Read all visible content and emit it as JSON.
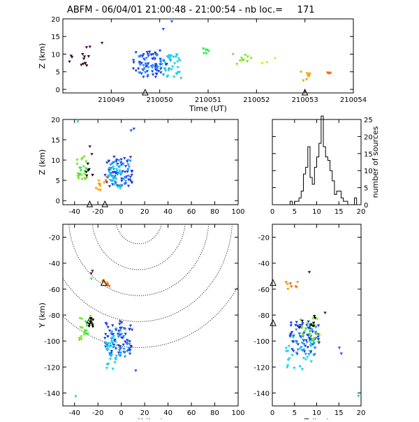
{
  "title": "ABFM - 06/04/01 21:00:48 - 21:00:54 - nb loc.=     171",
  "chart_data": [
    {
      "id": "time-height",
      "type": "scatter",
      "xlabel": "Time (UT)",
      "ylabel": "Z (km)",
      "xlim": [
        210048,
        210054
      ],
      "ylim": [
        -1,
        20
      ],
      "xticks": [
        210049,
        210050,
        210051,
        210052,
        210053,
        210054
      ],
      "yticks": [
        0,
        5,
        10,
        15,
        20
      ],
      "markers_x": [
        210049.7,
        210053.0
      ],
      "groups": [
        {
          "color": "#3a0a2a",
          "n": 12,
          "x": [
            210048.08,
            210048.6
          ],
          "y": [
            6,
            10
          ]
        },
        {
          "color": "#550a55",
          "n": 3,
          "x": [
            210048.35,
            210048.85
          ],
          "y": [
            11,
            13.5
          ]
        },
        {
          "color": "#1a3ae0",
          "n": 55,
          "x": [
            210049.45,
            210050.15
          ],
          "y": [
            3.5,
            11
          ]
        },
        {
          "color": "#1e90ff",
          "n": 35,
          "x": [
            210049.5,
            210050.25
          ],
          "y": [
            4,
            10
          ]
        },
        {
          "color": "#14d2e6",
          "n": 30,
          "x": [
            210050.1,
            210050.45
          ],
          "y": [
            3,
            10
          ]
        },
        {
          "color": "#2050ff",
          "n": 2,
          "x": [
            210050.0,
            210050.4
          ],
          "y": [
            17,
            19.5
          ]
        },
        {
          "color": "#28e650",
          "n": 6,
          "x": [
            210050.85,
            210051.05
          ],
          "y": [
            10,
            12
          ]
        },
        {
          "color": "#78e61e",
          "n": 10,
          "x": [
            210051.5,
            210051.9
          ],
          "y": [
            6.5,
            10
          ]
        },
        {
          "color": "#c8f01e",
          "n": 3,
          "x": [
            210052.1,
            210052.5
          ],
          "y": [
            7,
            9.5
          ]
        },
        {
          "color": "#f0a000",
          "n": 8,
          "x": [
            210052.9,
            210053.1
          ],
          "y": [
            2.5,
            5
          ]
        },
        {
          "color": "#ff5a00",
          "n": 3,
          "x": [
            210053.3,
            210053.55
          ],
          "y": [
            4,
            5.5
          ]
        }
      ]
    },
    {
      "id": "x-z",
      "type": "scatter",
      "xlabel": "",
      "ylabel": "Z (km)",
      "xlim": [
        -50,
        100
      ],
      "ylim": [
        -1,
        20
      ],
      "xticks": [
        -40,
        -20,
        0,
        20,
        40,
        60,
        80,
        100
      ],
      "yticks": [
        0,
        5,
        10,
        15,
        20
      ],
      "markers_x": [
        -27,
        -14
      ],
      "groups": [
        {
          "color": "#78e61e",
          "n": 20,
          "x": [
            -38,
            -28
          ],
          "y": [
            5,
            11
          ]
        },
        {
          "color": "#28e650",
          "n": 6,
          "x": [
            -36,
            -29
          ],
          "y": [
            6,
            9
          ]
        },
        {
          "color": "#000000",
          "n": 6,
          "x": [
            -30,
            -24
          ],
          "y": [
            6,
            10
          ]
        },
        {
          "color": "#550a55",
          "n": 2,
          "x": [
            -30,
            -24
          ],
          "y": [
            11,
            13.5
          ]
        },
        {
          "color": "#f0a000",
          "n": 8,
          "x": [
            -22,
            -14
          ],
          "y": [
            2.5,
            5
          ]
        },
        {
          "color": "#ff5a00",
          "n": 3,
          "x": [
            -15,
            -10
          ],
          "y": [
            4,
            6
          ]
        },
        {
          "color": "#1a3ae0",
          "n": 55,
          "x": [
            -14,
            10
          ],
          "y": [
            3.5,
            11
          ]
        },
        {
          "color": "#1e90ff",
          "n": 30,
          "x": [
            -12,
            8
          ],
          "y": [
            4,
            10
          ]
        },
        {
          "color": "#14d2e6",
          "n": 25,
          "x": [
            -12,
            0
          ],
          "y": [
            3,
            9
          ]
        },
        {
          "color": "#2050ff",
          "n": 2,
          "x": [
            8,
            12
          ],
          "y": [
            16,
            18
          ]
        },
        {
          "color": "#14d2e6",
          "n": 1,
          "x": [
            -39,
            -37
          ],
          "y": [
            19,
            19.6
          ]
        }
      ]
    },
    {
      "id": "histogram",
      "type": "bar",
      "xlabel": "",
      "ylabel": "number of sources",
      "xlim": [
        0,
        20
      ],
      "ylim": [
        0,
        25
      ],
      "xticks": [
        0,
        5,
        10,
        15,
        20
      ],
      "yticks": [
        0,
        5,
        10,
        15,
        20,
        25
      ],
      "bin_width": 0.5,
      "bin_start": 0,
      "values": [
        0,
        0,
        0,
        0,
        0,
        0,
        0,
        0,
        1,
        0,
        1,
        1,
        2,
        4,
        9,
        11,
        17,
        8,
        6,
        11,
        14,
        18,
        26,
        17,
        14,
        13,
        10,
        7,
        3,
        4,
        4,
        2,
        1,
        1,
        0,
        0,
        0,
        2,
        0,
        0
      ]
    },
    {
      "id": "x-y",
      "type": "scatter",
      "xlabel": "X (km)",
      "ylabel": "Y (km)",
      "xlim": [
        -50,
        100
      ],
      "ylim": [
        -150,
        -10
      ],
      "xticks": [
        -40,
        -20,
        0,
        20,
        40,
        60,
        80,
        100
      ],
      "yticks": [
        -140,
        -120,
        -100,
        -80,
        -60,
        -40,
        -20
      ],
      "markers": [
        [
          -15,
          -55
        ],
        [
          -27,
          -84
        ]
      ],
      "range_rings": {
        "center": [
          15,
          -5
        ],
        "radii": [
          20,
          40,
          60,
          80,
          100
        ]
      },
      "groups": [
        {
          "color": "#1a3ae0",
          "n": 55,
          "x": [
            -14,
            10
          ],
          "y": [
            -110,
            -84
          ]
        },
        {
          "color": "#1e90ff",
          "n": 30,
          "x": [
            -10,
            8
          ],
          "y": [
            -112,
            -88
          ]
        },
        {
          "color": "#14d2e6",
          "n": 25,
          "x": [
            -14,
            -4
          ],
          "y": [
            -122,
            -95
          ]
        },
        {
          "color": "#78e61e",
          "n": 16,
          "x": [
            -36,
            -26
          ],
          "y": [
            -100,
            -80
          ]
        },
        {
          "color": "#28e650",
          "n": 6,
          "x": [
            -34,
            -28
          ],
          "y": [
            -95,
            -84
          ]
        },
        {
          "color": "#000000",
          "n": 8,
          "x": [
            -30,
            -24
          ],
          "y": [
            -90,
            -82
          ]
        },
        {
          "color": "#f0a000",
          "n": 5,
          "x": [
            -16,
            -12
          ],
          "y": [
            -58,
            -53
          ]
        },
        {
          "color": "#ff5a00",
          "n": 3,
          "x": [
            -14,
            -10
          ],
          "y": [
            -58,
            -55
          ]
        },
        {
          "color": "#550a55",
          "n": 2,
          "x": [
            -26,
            -23
          ],
          "y": [
            -48,
            -44
          ]
        },
        {
          "color": "#28e650",
          "n": 1,
          "x": [
            -26,
            -24
          ],
          "y": [
            -53,
            -52
          ]
        },
        {
          "color": "#2050ff",
          "n": 1,
          "x": [
            12,
            14
          ],
          "y": [
            -124,
            -122
          ]
        },
        {
          "color": "#14d2e6",
          "n": 1,
          "x": [
            -40,
            -38
          ],
          "y": [
            -144,
            -142
          ]
        }
      ]
    },
    {
      "id": "z-y",
      "type": "scatter",
      "xlabel": "Z (km)",
      "ylabel": "",
      "xlim": [
        0,
        20
      ],
      "ylim": [
        -150,
        -10
      ],
      "xticks": [
        0,
        5,
        10,
        15,
        20
      ],
      "yticks": [
        -140,
        -120,
        -100,
        -80,
        -60,
        -40,
        -20
      ],
      "markers": [
        [
          0,
          -55
        ],
        [
          0,
          -86
        ]
      ],
      "groups": [
        {
          "color": "#1a3ae0",
          "n": 55,
          "x": [
            4,
            11
          ],
          "y": [
            -110,
            -84
          ]
        },
        {
          "color": "#1e90ff",
          "n": 30,
          "x": [
            4.5,
            10
          ],
          "y": [
            -112,
            -88
          ]
        },
        {
          "color": "#14d2e6",
          "n": 25,
          "x": [
            3,
            9
          ],
          "y": [
            -122,
            -95
          ]
        },
        {
          "color": "#78e61e",
          "n": 16,
          "x": [
            6,
            11
          ],
          "y": [
            -100,
            -82
          ]
        },
        {
          "color": "#28e650",
          "n": 6,
          "x": [
            7,
            10
          ],
          "y": [
            -95,
            -84
          ]
        },
        {
          "color": "#000000",
          "n": 8,
          "x": [
            6,
            10
          ],
          "y": [
            -90,
            -80
          ]
        },
        {
          "color": "#f0a000",
          "n": 6,
          "x": [
            3,
            6
          ],
          "y": [
            -60,
            -53
          ]
        },
        {
          "color": "#ff5a00",
          "n": 3,
          "x": [
            4,
            6
          ],
          "y": [
            -58,
            -55
          ]
        },
        {
          "color": "#550a55",
          "n": 2,
          "x": [
            8,
            14
          ],
          "y": [
            -97,
            -44
          ]
        },
        {
          "color": "#2050ff",
          "n": 2,
          "x": [
            15,
            18
          ],
          "y": [
            -110,
            -100
          ]
        },
        {
          "color": "#14d2e6",
          "n": 1,
          "x": [
            18.5,
            19.5
          ],
          "y": [
            -144,
            -142
          ]
        }
      ]
    }
  ]
}
